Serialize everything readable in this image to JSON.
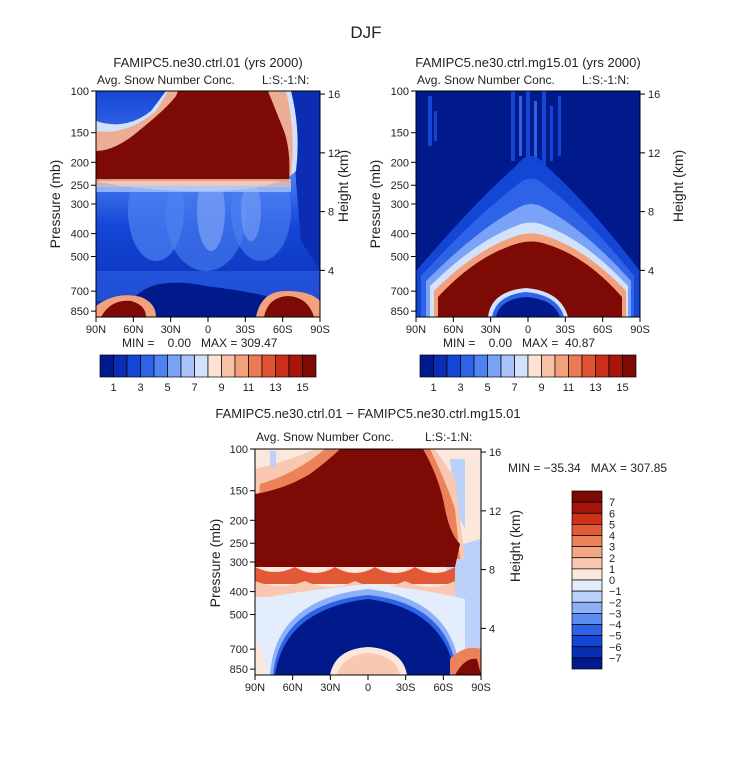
{
  "figure_title": "DJF",
  "chart_data": [
    {
      "type": "heatmap",
      "title": "FAMIPC5.ne30.ctrl.01 (yrs 2000)",
      "subtitle": "Avg. Snow Number Conc.",
      "subtitle_right": "L:S:-1:N:",
      "ylabel": "Pressure (mb)",
      "y2label": "Height (km)",
      "x_ticks": [
        "90N",
        "60N",
        "30N",
        "0",
        "30S",
        "60S",
        "90S"
      ],
      "y_ticks": [
        "100",
        "150",
        "200",
        "250",
        "300",
        "400",
        "500",
        "700",
        "850"
      ],
      "y2_ticks": [
        "16",
        "12",
        "8",
        "4"
      ],
      "stats": "MIN =    0.00   MAX = 309.47",
      "colorbar_labels": [
        "1",
        "3",
        "5",
        "7",
        "9",
        "11",
        "13",
        "15"
      ]
    },
    {
      "type": "heatmap",
      "title": "FAMIPC5.ne30.ctrl.mg15.01 (yrs 2000)",
      "subtitle": "Avg. Snow Number Conc.",
      "subtitle_right": "L:S:-1:N:",
      "ylabel": "Pressure (mb)",
      "y2label": "Height (km)",
      "x_ticks": [
        "90N",
        "60N",
        "30N",
        "0",
        "30S",
        "60S",
        "90S"
      ],
      "y_ticks": [
        "100",
        "150",
        "200",
        "250",
        "300",
        "400",
        "500",
        "700",
        "850"
      ],
      "y2_ticks": [
        "16",
        "12",
        "8",
        "4"
      ],
      "stats": "MIN =    0.00   MAX =  40.87",
      "colorbar_labels": [
        "1",
        "3",
        "5",
        "7",
        "9",
        "11",
        "13",
        "15"
      ]
    },
    {
      "type": "heatmap",
      "title": "FAMIPC5.ne30.ctrl.01 − FAMIPC5.ne30.ctrl.mg15.01",
      "subtitle": "Avg. Snow Number Conc.",
      "subtitle_right": "L:S:-1:N:",
      "ylabel": "Pressure (mb)",
      "y2label": "Height (km)",
      "x_ticks": [
        "90N",
        "60N",
        "30N",
        "0",
        "30S",
        "60S",
        "90S"
      ],
      "y_ticks": [
        "100",
        "150",
        "200",
        "250",
        "300",
        "400",
        "500",
        "700",
        "850"
      ],
      "y2_ticks": [
        "16",
        "12",
        "8",
        "4"
      ],
      "stats": "MIN = −35.34   MAX = 307.85",
      "colorbar_labels": [
        "7",
        "6",
        "5",
        "4",
        "3",
        "2",
        "1",
        "0",
        "−1",
        "−2",
        "−3",
        "−4",
        "−5",
        "−6",
        "−7"
      ]
    }
  ],
  "colors": {
    "levels_seq": [
      "#001a8c",
      "#0a2db4",
      "#1446d6",
      "#2e63e8",
      "#4f82f2",
      "#7aa2f7",
      "#a8c3fa",
      "#d3e2fb",
      "#fbe3d4",
      "#f8c2a6",
      "#f3a07c",
      "#ec7a55",
      "#e05433",
      "#cc2e1a",
      "#a9150c",
      "#7d0a05"
    ],
    "levels_diff": [
      "#001a8c",
      "#0a2db4",
      "#1446d6",
      "#2e63e8",
      "#5a8cf2",
      "#8eb0f7",
      "#bcd1fa",
      "#e3edfb",
      "#fbe7dc",
      "#f8c9b0",
      "#f3a784",
      "#ec8259",
      "#e25a35",
      "#cc3217",
      "#a3150a",
      "#7d0a05"
    ]
  }
}
